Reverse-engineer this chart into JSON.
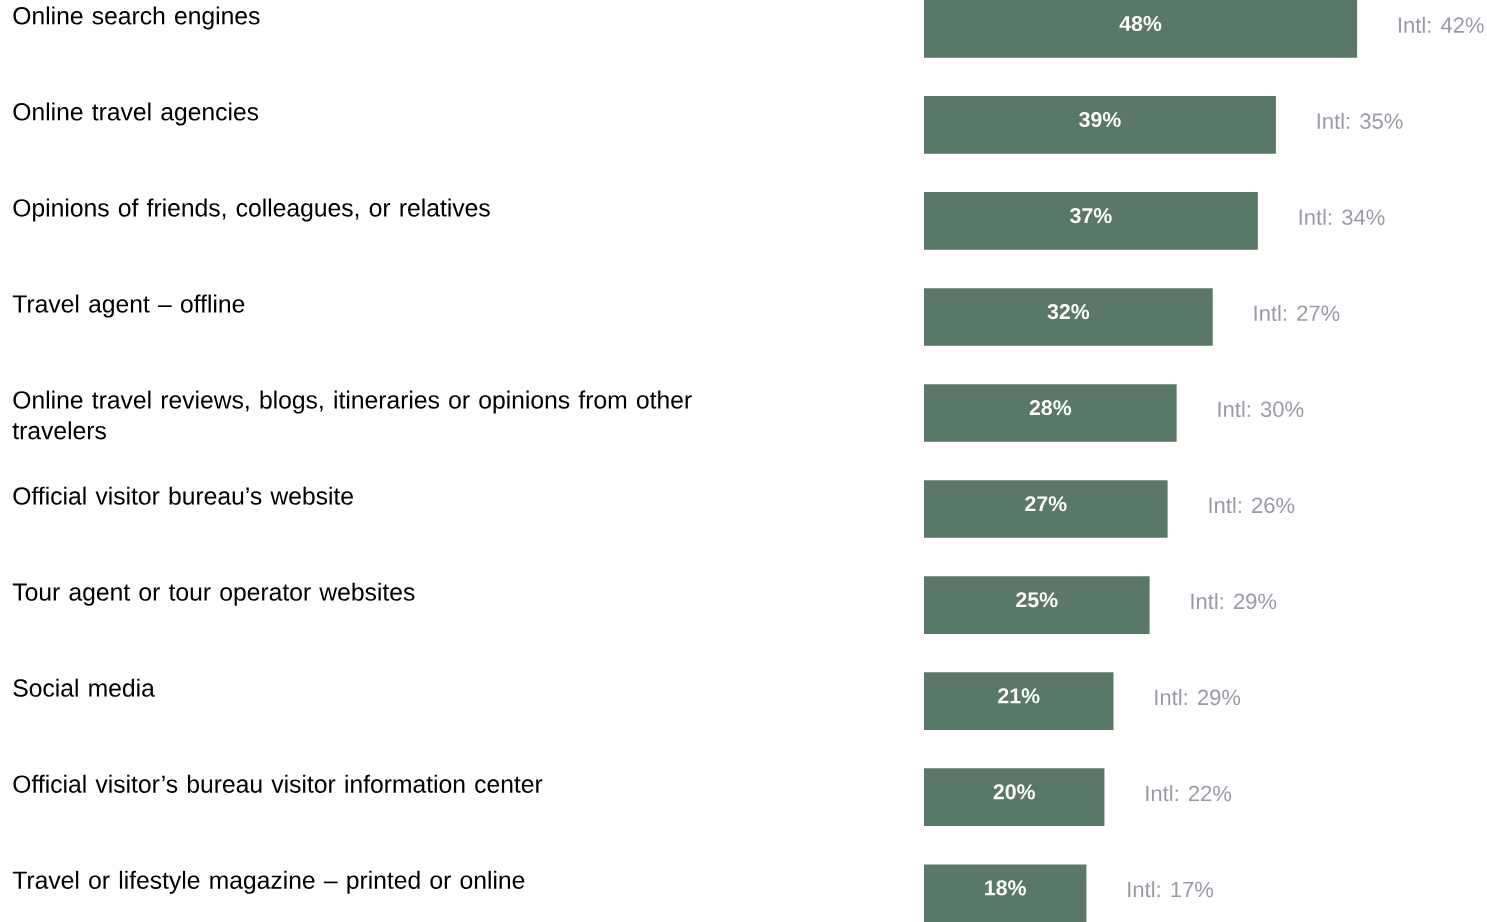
{
  "chart_data": {
    "type": "bar",
    "orientation": "horizontal",
    "categories": [
      "Online search engines",
      "Online travel agencies",
      "Opinions of friends, colleagues, or relatives",
      "Travel agent – offline",
      "Online travel reviews, blogs, itineraries or opinions from other travelers",
      "Official visitor bureau’s website",
      "Tour agent or tour operator websites",
      "Social media",
      "Official visitor’s bureau visitor information center",
      "Travel or lifestyle magazine – printed or online"
    ],
    "values": [
      48,
      39,
      37,
      32,
      28,
      27,
      25,
      21,
      20,
      18
    ],
    "value_labels": [
      "48%",
      "39%",
      "37%",
      "32%",
      "28%",
      "27%",
      "25%",
      "21%",
      "20%",
      "18%"
    ],
    "color": "#5a7868",
    "annotations": [
      {
        "text": "Intl: 42%",
        "x": 48,
        "y": "Online search engines"
      },
      {
        "text": "Intl: 35%",
        "x": 39,
        "y": "Online travel agencies"
      },
      {
        "text": "Intl: 34%",
        "x": 37,
        "y": "Opinions of friends, colleagues, or relatives"
      },
      {
        "text": "Intl: 27%",
        "x": 32,
        "y": "Travel agent – offline"
      },
      {
        "text": "Intl: 30%",
        "x": 28,
        "y": "Online travel reviews, blogs, itineraries or opinions from other travelers"
      },
      {
        "text": "Intl: 26%",
        "x": 27,
        "y": "Official visitor bureau’s website"
      },
      {
        "text": "Intl: 29%",
        "x": 25,
        "y": "Tour agent or tour operator websites"
      },
      {
        "text": "Intl: 29%",
        "x": 21,
        "y": "Social media"
      },
      {
        "text": "Intl: 22%",
        "x": 20,
        "y": "Official visitor’s bureau visitor information center"
      },
      {
        "text": "Intl: 17%",
        "x": 18,
        "y": "Travel or lifestyle magazine – printed or online"
      }
    ],
    "grid": false
  }
}
